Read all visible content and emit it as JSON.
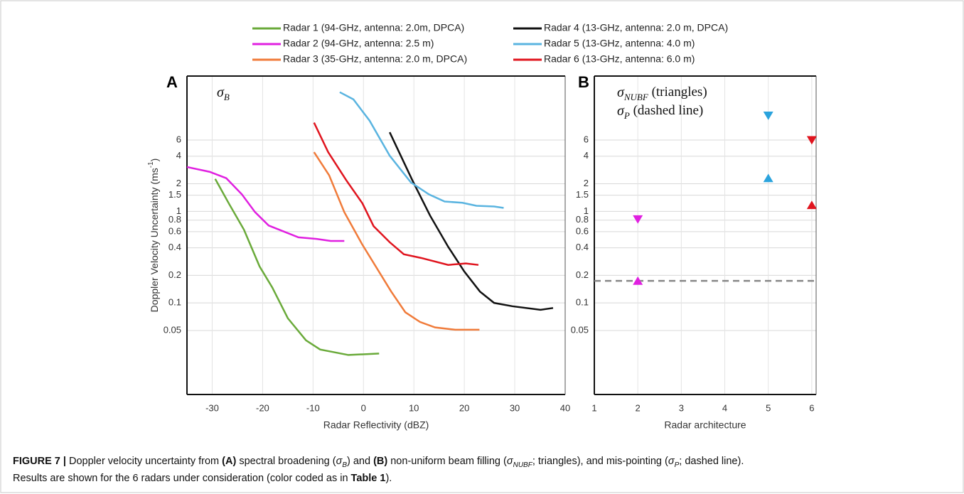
{
  "chart_data": [
    {
      "type": "line",
      "panel": "A",
      "yscale": "log",
      "grid": true,
      "annotation": {
        "symbol": "σ",
        "sub": "B"
      },
      "xlabel": "Radar Reflectivity (dBZ)",
      "ylabel": [
        "Doppler Velocity Uncertainty (ms",
        "-1",
        ")"
      ],
      "xlim": [
        -35,
        40
      ],
      "xticks": [
        -30,
        -20,
        -10,
        0,
        10,
        20,
        30,
        40
      ],
      "ylim": [
        0.01,
        30
      ],
      "yticks": [
        0.05,
        0.1,
        0.2,
        0.4,
        0.6,
        0.8,
        1,
        1.5,
        2,
        4,
        6
      ],
      "series": [
        {
          "name": "Radar 1 (94-GHz, antenna: 2.0m, DPCA)",
          "color": "#6aaa3a",
          "x": [
            -29.4,
            -26.7,
            -23.7,
            -20.6,
            -18.1,
            -15,
            -11.4,
            -8.6,
            -3,
            3.1
          ],
          "values": [
            2.26,
            1.22,
            0.63,
            0.25,
            0.148,
            0.068,
            0.039,
            0.031,
            0.027,
            0.028
          ]
        },
        {
          "name": "Radar 2 (94-GHz, antenna: 2.5 m)",
          "color": "#e020e0",
          "x": [
            -35,
            -30.5,
            -27.2,
            -24.1,
            -21.5,
            -18.8,
            -12.9,
            -9.3,
            -6.5,
            -3.8
          ],
          "values": [
            3.05,
            2.7,
            2.3,
            1.53,
            0.98,
            0.7,
            0.52,
            0.5,
            0.475,
            0.475
          ]
        },
        {
          "name": "Radar 3 (35-GHz, antenna: 2.0 m, DPCA)",
          "color": "#f07b3a",
          "x": [
            -9.8,
            -6.8,
            -3.8,
            -0.3,
            5.5,
            8.3,
            11.2,
            14.2,
            18.2,
            23
          ],
          "values": [
            4.43,
            2.47,
            0.98,
            0.44,
            0.133,
            0.079,
            0.062,
            0.054,
            0.051,
            0.051
          ]
        },
        {
          "name": "Radar 4 (13-GHz, antenna: 2.0 m, DPCA)",
          "color": "#111111",
          "x": [
            5.2,
            9.7,
            13.2,
            16.8,
            20,
            23.1,
            25.9,
            29.5,
            35.1,
            37.6
          ],
          "values": [
            7.3,
            2.18,
            0.9,
            0.41,
            0.22,
            0.133,
            0.1,
            0.092,
            0.084,
            0.088
          ]
        },
        {
          "name": "Radar 5 (13-GHz, antenna: 4.0 m)",
          "color": "#5ab4e0",
          "x": [
            -4.7,
            -2,
            1.2,
            5.2,
            9.4,
            13,
            16.1,
            19.6,
            22.4,
            25.9,
            27.8
          ],
          "values": [
            20,
            16.7,
            9.8,
            4.05,
            2.07,
            1.53,
            1.28,
            1.24,
            1.15,
            1.13,
            1.09
          ]
        },
        {
          "name": "Radar 6 (13-GHz, antenna: 6.0 m)",
          "color": "#e0141e",
          "x": [
            -9.8,
            -7,
            -3.4,
            -0.2,
            2,
            5.2,
            8,
            11.4,
            16.8,
            20.3,
            22.8
          ],
          "values": [
            9.3,
            4.43,
            2.18,
            1.22,
            0.69,
            0.46,
            0.34,
            0.31,
            0.26,
            0.27,
            0.26
          ]
        }
      ]
    },
    {
      "type": "scatter",
      "panel": "B",
      "yscale": "log",
      "grid": true,
      "annotations": [
        {
          "symbol": "σ",
          "sub": "NUBF",
          "text": " (triangles)"
        },
        {
          "symbol": "σ",
          "sub": "P",
          "text": " (dashed line)"
        }
      ],
      "xlabel": "Radar architecture",
      "xlim": [
        1,
        6.1
      ],
      "xticks": [
        1,
        2,
        3,
        4,
        5,
        6
      ],
      "ylim": [
        0.01,
        30
      ],
      "yticks": [
        0.05,
        0.1,
        0.2,
        0.4,
        0.6,
        0.8,
        1,
        1.5,
        2,
        4,
        6
      ],
      "series": [
        {
          "marker": "triangle-down",
          "x": [
            2,
            5,
            6
          ],
          "values": [
            0.82,
            11.1,
            6.0
          ],
          "colors": [
            "#e020e0",
            "#2aa3dd",
            "#e0141e"
          ]
        },
        {
          "marker": "triangle-up",
          "x": [
            2,
            5,
            6
          ],
          "values": [
            0.174,
            2.3,
            1.17
          ],
          "colors": [
            "#e020e0",
            "#2aa3dd",
            "#e0141e"
          ]
        }
      ],
      "hline": {
        "value": 0.174,
        "color": "#888888",
        "dashed": true
      }
    }
  ],
  "caption": [
    [
      {
        "text": "FIGURE 7 |",
        "bold": true
      },
      {
        "text": " Doppler velocity uncertainty from "
      },
      {
        "text": "(A)",
        "bold": true
      },
      {
        "text": " spectral broadening ("
      },
      {
        "text": "σ",
        "italic": true
      },
      {
        "text": "B",
        "sub": true
      },
      {
        "text": ") and "
      },
      {
        "text": "(B)",
        "bold": true
      },
      {
        "text": " non-uniform beam filling ("
      },
      {
        "text": "σ",
        "italic": true
      },
      {
        "text": "NUBF",
        "sub": true
      },
      {
        "text": "; triangles), and mis-pointing ("
      },
      {
        "text": "σ",
        "italic": true
      },
      {
        "text": "P",
        "sub": true
      },
      {
        "text": "; dashed line)."
      }
    ],
    [
      {
        "text": "Results are shown for the 6 radars under consideration (color coded as in "
      },
      {
        "text": "Table 1",
        "bold": true
      },
      {
        "text": ")."
      }
    ]
  ]
}
